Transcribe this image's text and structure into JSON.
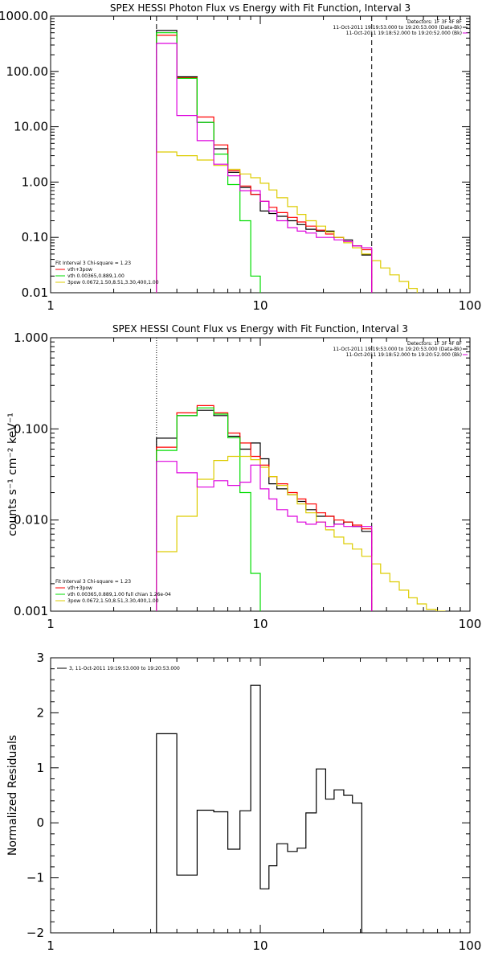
{
  "chart_data": [
    {
      "type": "line",
      "title": "SPEX HESSI Photon Flux vs Energy with Fit Function, Interval 3",
      "xscale": "log",
      "yscale": "log",
      "xlim": [
        1,
        100
      ],
      "ylim": [
        0.01,
        1000
      ],
      "xticks": [
        "1",
        "10",
        "100"
      ],
      "yticks": [
        "0.01",
        "0.10",
        "1.00",
        "10.00",
        "100.00",
        "1000.00"
      ],
      "xlabel": "",
      "ylabel": "",
      "legend_top": [
        "Detectors: 1F 3F 4F 8F",
        "11-Oct-2011 19:19:53.000 to 19:20:53.000 (Data-Bk)",
        "11-Oct-2011 19:18:52.000 to 19:20:52.000 (Bk)"
      ],
      "legend_bottom": [
        "Fit Interval 3   Chi-square = 1.23",
        "vth+3pow",
        "vth 0.00365,0.889,1.00",
        "3pow 0.0672,1.50,8.51,3.30,400,1.00"
      ],
      "vlines": [
        3.2,
        34
      ],
      "edges": [
        3.2,
        4.0,
        5.0,
        6.0,
        7.0,
        8.0,
        9.0,
        10.0,
        11.0,
        12.0,
        13.5,
        15.0,
        16.5,
        18.5,
        20.5,
        22.5,
        25.0,
        27.5,
        30.5,
        34.0,
        37.5,
        41.5,
        46.0,
        51.0,
        56.0
      ],
      "series": [
        {
          "name": "",
          "color": "#000000",
          "values": [
            550,
            80,
            12,
            4,
            1.5,
            0.8,
            0.6,
            0.3,
            0.27,
            0.24,
            0.2,
            0.17,
            0.14,
            0.13,
            0.13,
            0.1,
            0.09,
            0.07,
            0.048
          ]
        },
        {
          "name": "vth+3pow",
          "color": "#ff0000",
          "values": [
            450,
            77,
            15,
            4.7,
            1.6,
            0.85,
            0.6,
            0.45,
            0.35,
            0.28,
            0.23,
            0.19,
            0.16,
            0.135,
            0.115,
            0.1,
            0.085,
            0.07,
            0.06
          ]
        },
        {
          "name": "vth 0.00365,0.889,1.00",
          "color": "#00dd00",
          "values": [
            500,
            75,
            12,
            3.2,
            0.9,
            0.2,
            0.02
          ]
        },
        {
          "name": "3pow 0.0672,1.50,8.51,3.30,400,1.00",
          "color": "#ddcc00",
          "values": [
            3.5,
            3.0,
            2.5,
            2.0,
            1.7,
            1.4,
            1.2,
            0.95,
            0.72,
            0.52,
            0.36,
            0.26,
            0.2,
            0.16,
            0.125,
            0.1,
            0.08,
            0.065,
            0.05,
            0.038,
            0.028,
            0.021,
            0.016,
            0.012
          ]
        },
        {
          "name": "",
          "color": "#dd00dd",
          "values": [
            320,
            16,
            5.6,
            2.1,
            1.3,
            0.7,
            0.7,
            0.45,
            0.3,
            0.2,
            0.15,
            0.13,
            0.12,
            0.1,
            0.1,
            0.09,
            0.085,
            0.07,
            0.065
          ]
        }
      ]
    },
    {
      "type": "line",
      "title": "SPEX HESSI Count Flux vs Energy with Fit Function, Interval 3",
      "xscale": "log",
      "yscale": "log",
      "xlim": [
        1,
        100
      ],
      "ylim": [
        0.001,
        1
      ],
      "xticks": [
        "1",
        "10",
        "100"
      ],
      "yticks": [
        "0.001",
        "0.010",
        "0.100",
        "1.000"
      ],
      "xlabel": "",
      "ylabel": "counts s⁻¹ cm⁻² keV⁻¹",
      "legend_top": [
        "Detectors: 1F 3F 4F 8F",
        "11-Oct-2011 19:19:53.000 to 19:20:53.000 (Data-Bk)",
        "11-Oct-2011 19:18:52.000 to 19:20:52.000 (Bk)"
      ],
      "legend_bottom": [
        "Fit Interval 3   Chi-square = 1.23",
        "vth+3pow",
        "vth 0.00365,0.889,1.00   full chian 1.26e-04",
        "3pow 0.0672,1.50,8.51,3.30,400,1.00"
      ],
      "vlines_dotted": [
        3.2
      ],
      "vlines": [
        34
      ],
      "edges": [
        3.2,
        4.0,
        5.0,
        6.0,
        7.0,
        8.0,
        9.0,
        10.0,
        11.0,
        12.0,
        13.5,
        15.0,
        16.5,
        18.5,
        20.5,
        22.5,
        25.0,
        27.5,
        30.5,
        34.0,
        37.5,
        41.5,
        46.0,
        51.0,
        56.0,
        62.0,
        69.0,
        76.0
      ],
      "series": [
        {
          "name": "",
          "color": "#000000",
          "values": [
            0.079,
            0.14,
            0.16,
            0.14,
            0.083,
            0.06,
            0.07,
            0.047,
            0.025,
            0.022,
            0.019,
            0.016,
            0.013,
            0.011,
            0.011,
            0.009,
            0.0095,
            0.0085,
            0.0075
          ]
        },
        {
          "name": "vth+3pow",
          "color": "#ff0000",
          "values": [
            0.063,
            0.15,
            0.18,
            0.15,
            0.09,
            0.07,
            0.05,
            0.04,
            0.03,
            0.025,
            0.02,
            0.017,
            0.015,
            0.012,
            0.011,
            0.01,
            0.0095,
            0.0088,
            0.008
          ]
        },
        {
          "name": "vth 0.00365,0.889,1.00",
          "color": "#00dd00",
          "values": [
            0.058,
            0.14,
            0.17,
            0.145,
            0.08,
            0.02,
            0.0026
          ]
        },
        {
          "name": "3pow 0.0672,1.50,8.51,3.30,400,1.00",
          "color": "#ddcc00",
          "values": [
            0.0045,
            0.011,
            0.028,
            0.045,
            0.05,
            0.05,
            0.046,
            0.038,
            0.03,
            0.024,
            0.019,
            0.015,
            0.012,
            0.0095,
            0.0078,
            0.0065,
            0.0055,
            0.0048,
            0.004,
            0.0033,
            0.0026,
            0.0021,
            0.0017,
            0.0014,
            0.0012,
            0.00105,
            0.001
          ]
        },
        {
          "name": "",
          "color": "#dd00dd",
          "values": [
            0.044,
            0.033,
            0.023,
            0.027,
            0.024,
            0.026,
            0.04,
            0.022,
            0.017,
            0.013,
            0.011,
            0.0095,
            0.009,
            0.0095,
            0.0085,
            0.009,
            0.0085,
            0.0085,
            0.0085
          ]
        }
      ]
    },
    {
      "type": "line",
      "title": "",
      "xscale": "log",
      "yscale": "linear",
      "xlim": [
        1,
        100
      ],
      "ylim": [
        -2,
        3
      ],
      "xticks": [
        "1",
        "10",
        "100"
      ],
      "yticks": [
        "−2",
        "−1",
        "0",
        "1",
        "2",
        "3"
      ],
      "ylabel": "Normalized Residuals",
      "legend": [
        "3, 11-Oct-2011 19:19:53.000 to 19:20:53.000"
      ],
      "edges": [
        3.2,
        4.0,
        5.0,
        6.0,
        7.0,
        8.0,
        9.0,
        10.0,
        11.0,
        12.0,
        13.5,
        15.0,
        16.5,
        18.5,
        20.5,
        22.5,
        25.0,
        27.5,
        30.5,
        34.0
      ],
      "series": [
        {
          "name": "",
          "color": "#000000",
          "values": [
            1.62,
            -0.95,
            0.23,
            0.2,
            -0.48,
            0.22,
            2.5,
            -1.2,
            -0.78,
            -0.38,
            -0.52,
            -0.46,
            0.18,
            0.98,
            0.43,
            0.6,
            0.5,
            0.36,
            -2.2
          ]
        }
      ]
    }
  ]
}
